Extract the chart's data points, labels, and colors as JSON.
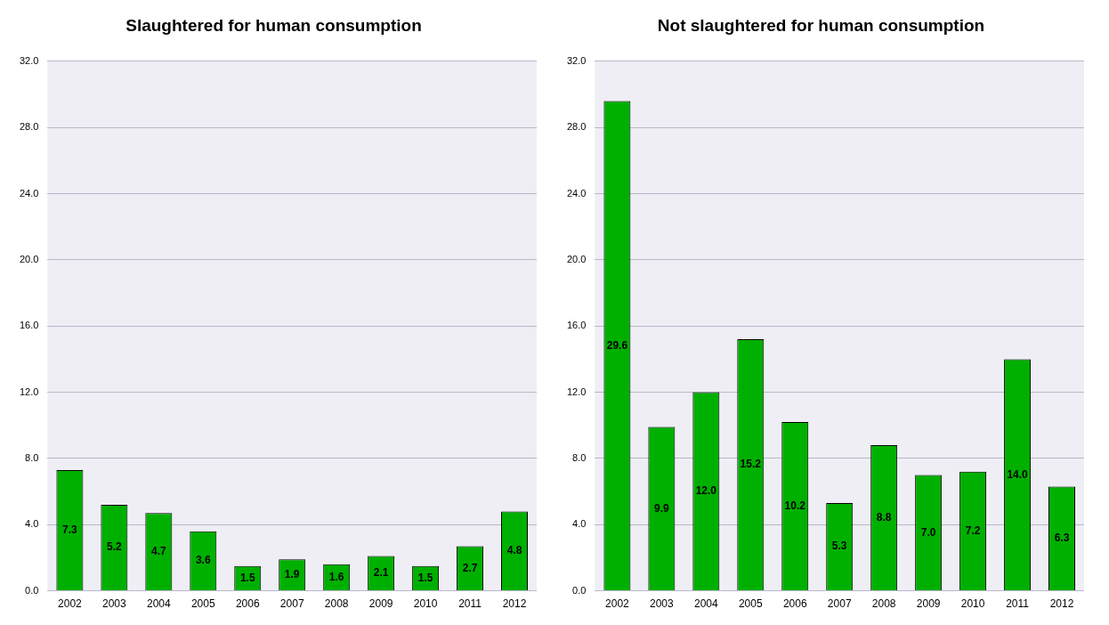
{
  "chart_data": [
    {
      "type": "bar",
      "title": "Slaughtered for human consumption",
      "categories": [
        "2002",
        "2003",
        "2004",
        "2005",
        "2006",
        "2007",
        "2008",
        "2009",
        "2010",
        "2011",
        "2012"
      ],
      "values": [
        7.3,
        5.2,
        4.7,
        3.6,
        1.5,
        1.9,
        1.6,
        2.1,
        1.5,
        2.7,
        4.8
      ],
      "value_labels": [
        "7.3",
        "5.2",
        "4.7",
        "3.6",
        "1.5",
        "1.9",
        "1.6",
        "2.1",
        "1.5",
        "2.7",
        "4.8"
      ],
      "color": "#00b000",
      "ylim": [
        0,
        32
      ],
      "yticks": [
        {
          "value": 0,
          "label": "0.0"
        },
        {
          "value": 4,
          "label": "4.0"
        },
        {
          "value": 8,
          "label": "8.0"
        },
        {
          "value": 12,
          "label": "12.0"
        },
        {
          "value": 16,
          "label": "16.0"
        },
        {
          "value": 20,
          "label": "20.0"
        },
        {
          "value": 24,
          "label": "24.0"
        },
        {
          "value": 28,
          "label": "28.0"
        },
        {
          "value": 32,
          "label": "32.0"
        }
      ],
      "grid": "y"
    },
    {
      "type": "bar",
      "title": "Not slaughtered for human consumption",
      "categories": [
        "2002",
        "2003",
        "2004",
        "2005",
        "2006",
        "2007",
        "2008",
        "2009",
        "2010",
        "2011",
        "2012"
      ],
      "values": [
        29.6,
        9.9,
        12.0,
        15.2,
        10.2,
        5.3,
        8.8,
        7.0,
        7.2,
        14.0,
        6.3
      ],
      "value_labels": [
        "29.6",
        "9.9",
        "12.0",
        "15.2",
        "10.2",
        "5.3",
        "8.8",
        "7.0",
        "7.2",
        "14.0",
        "6.3"
      ],
      "color": "#00b000",
      "ylim": [
        0,
        32
      ],
      "yticks": [
        {
          "value": 0,
          "label": "0.0"
        },
        {
          "value": 4,
          "label": "4.0"
        },
        {
          "value": 8,
          "label": "8.0"
        },
        {
          "value": 12,
          "label": "12.0"
        },
        {
          "value": 16,
          "label": "16.0"
        },
        {
          "value": 20,
          "label": "20.0"
        },
        {
          "value": 24,
          "label": "24.0"
        },
        {
          "value": 28,
          "label": "28.0"
        },
        {
          "value": 32,
          "label": "32.0"
        }
      ],
      "grid": "y"
    }
  ]
}
